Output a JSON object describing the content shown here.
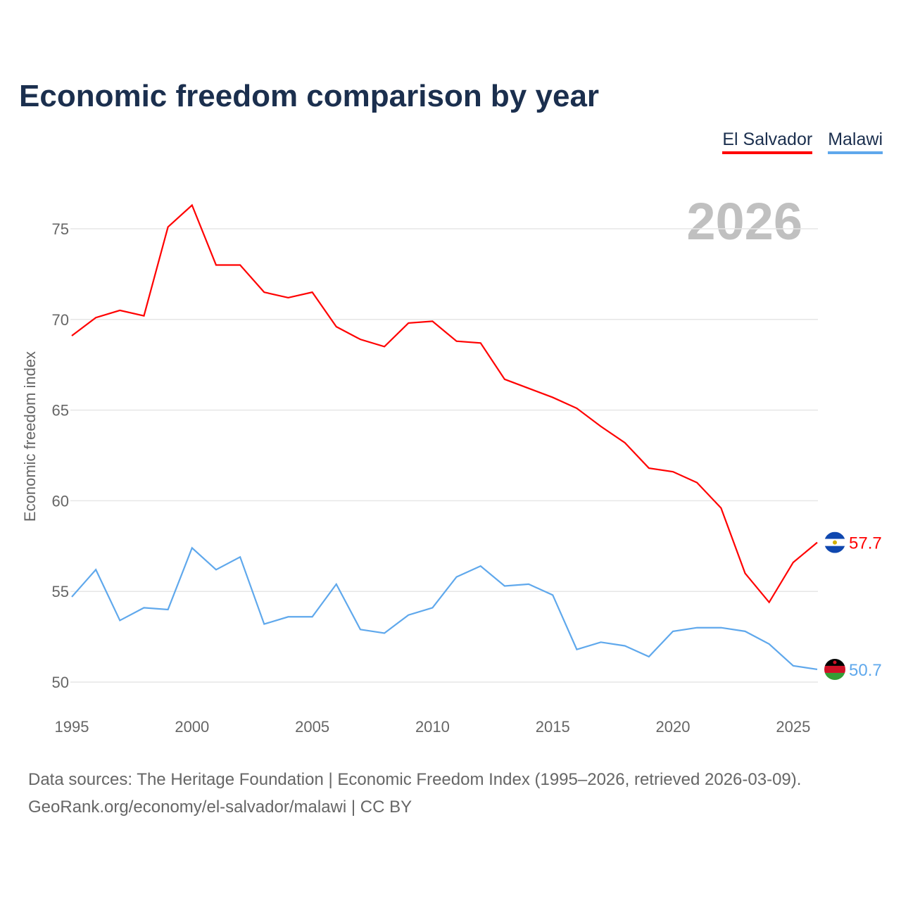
{
  "title": "Economic freedom comparison by year",
  "legend": [
    {
      "label": "El Salvador",
      "color": "#ff0000"
    },
    {
      "label": "Malawi",
      "color": "#5fa8ec"
    }
  ],
  "year_watermark": "2026",
  "source_line1": "Data sources: The Heritage Foundation | Economic Freedom Index (1995–2026, retrieved 2026-03-09).",
  "source_line2": "GeoRank.org/economy/el-salvador/malawi | CC BY",
  "chart_data": {
    "type": "line",
    "title": "Economic freedom comparison by year",
    "xlabel": "",
    "ylabel": "Economic freedom index",
    "xlim": [
      1995,
      2026
    ],
    "ylim": [
      50,
      77
    ],
    "xticks": [
      1995,
      2000,
      2005,
      2010,
      2015,
      2020,
      2025
    ],
    "yticks": [
      50,
      55,
      60,
      65,
      70,
      75
    ],
    "grid": true,
    "legend_position": "top-right",
    "x": [
      1995,
      1996,
      1997,
      1998,
      1999,
      2000,
      2001,
      2002,
      2003,
      2004,
      2005,
      2006,
      2007,
      2008,
      2009,
      2010,
      2011,
      2012,
      2013,
      2014,
      2015,
      2016,
      2017,
      2018,
      2019,
      2020,
      2021,
      2022,
      2023,
      2024,
      2025,
      2026
    ],
    "series": [
      {
        "name": "El Salvador",
        "color": "#ff0000",
        "end_label": "57.7",
        "values": [
          69.1,
          70.1,
          70.5,
          70.2,
          75.1,
          76.3,
          73.0,
          73.0,
          71.5,
          71.2,
          71.5,
          69.6,
          68.9,
          68.5,
          69.8,
          69.9,
          68.8,
          68.7,
          66.7,
          66.2,
          65.7,
          65.1,
          64.1,
          63.2,
          61.8,
          61.6,
          61.0,
          59.6,
          56.0,
          54.4,
          56.6,
          57.7
        ]
      },
      {
        "name": "Malawi",
        "color": "#5fa8ec",
        "end_label": "50.7",
        "values": [
          54.7,
          56.2,
          53.4,
          54.1,
          54.0,
          57.4,
          56.2,
          56.9,
          53.2,
          53.6,
          53.6,
          55.4,
          52.9,
          52.7,
          53.7,
          54.1,
          55.8,
          56.4,
          55.3,
          55.4,
          54.8,
          51.8,
          52.2,
          52.0,
          51.4,
          52.8,
          53.0,
          53.0,
          52.8,
          52.1,
          50.9,
          50.7
        ]
      }
    ]
  }
}
